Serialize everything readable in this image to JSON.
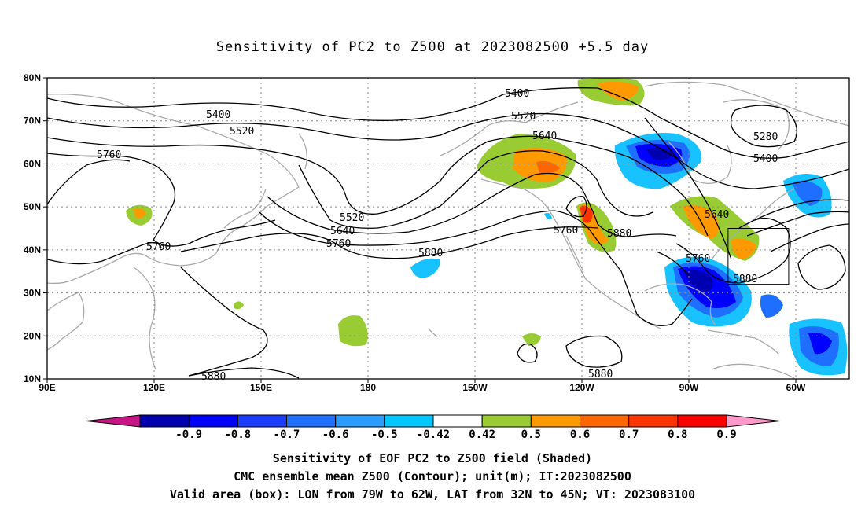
{
  "title": "Sensitivity of PC2 to Z500 at 2023082500 +5.5 day",
  "captions": {
    "line1": "Sensitivity of EOF PC2 to Z500 field (Shaded)",
    "line2": "CMC ensemble mean Z500 (Contour); unit(m); IT:2023082500",
    "line3": "Valid area (box): LON from 79W to 62W, LAT from 32N to 45N; VT: 2023083100"
  },
  "axes": {
    "lat_labels": [
      "80N",
      "70N",
      "60N",
      "50N",
      "40N",
      "30N",
      "20N",
      "10N"
    ],
    "lat_values": [
      80,
      70,
      60,
      50,
      40,
      30,
      20,
      10
    ],
    "lon_labels": [
      "90E",
      "120E",
      "150E",
      "180",
      "150W",
      "120W",
      "90W",
      "60W"
    ],
    "lon_values": [
      90,
      120,
      150,
      180,
      210,
      240,
      270,
      300
    ],
    "lon_range": [
      90,
      315
    ],
    "lat_range": [
      10,
      80
    ]
  },
  "valid_box": {
    "lon_west": -79,
    "lon_east": -62,
    "lat_south": 32,
    "lat_north": 45
  },
  "contour_labels": [
    "5400",
    "5520",
    "5760",
    "5520",
    "5640",
    "5760",
    "5760",
    "5880",
    "5400",
    "5520",
    "5640",
    "5760",
    "5880",
    "5280",
    "5400",
    "5640",
    "5760",
    "5880",
    "5880",
    "5880"
  ],
  "colorbar": {
    "labels": [
      "-0.9",
      "-0.8",
      "-0.7",
      "-0.6",
      "-0.5",
      "-0.42",
      "0.42",
      "0.5",
      "0.6",
      "0.7",
      "0.8",
      "0.9"
    ],
    "colors": [
      "#c71585",
      "#0000b0",
      "#0000ff",
      "#1a3cff",
      "#1e6fff",
      "#2a9bff",
      "#00c8ff",
      "#ffffff",
      "#99cc33",
      "#ff9900",
      "#ff6600",
      "#ff3300",
      "#ff0000",
      "#ff99cc"
    ]
  }
}
